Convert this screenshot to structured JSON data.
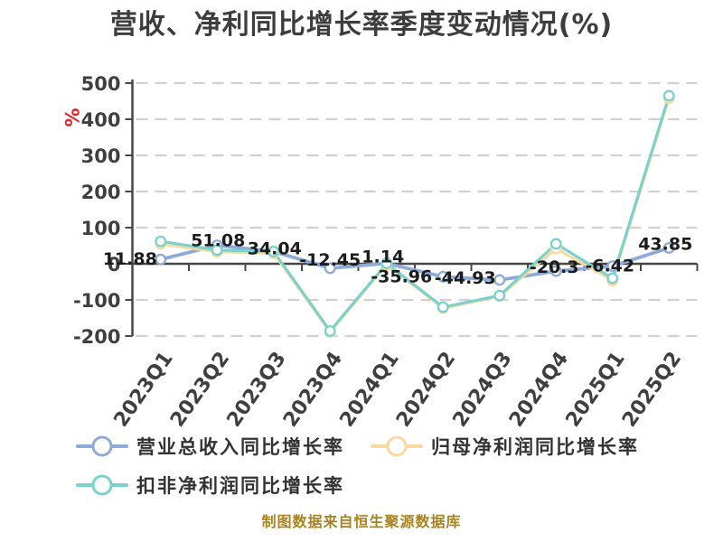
{
  "title": "营收、净利同比增长率季度变动情况(%)",
  "y_axis_unit": "%",
  "caption": "制图数据来自恒生聚源数据库",
  "colors": {
    "background": "#ffffff",
    "title_text": "#3d3d3d",
    "axis": "#474747",
    "grid": "#d0d0d0",
    "tick_text": "#3f3f3f",
    "data_label_text": "#1c1c1c",
    "unit_label": "#e02626",
    "caption_text": "#a9831f"
  },
  "chart_data": {
    "type": "line",
    "title": "营收、净利同比增长率季度变动情况(%)",
    "categories": [
      "2023Q1",
      "2023Q2",
      "2023Q3",
      "2023Q4",
      "2024Q1",
      "2024Q2",
      "2024Q3",
      "2024Q4",
      "2025Q1",
      "2025Q2"
    ],
    "xlabel": "",
    "ylabel": "%",
    "ylim": [
      -200,
      500
    ],
    "yticks": [
      500,
      400,
      300,
      200,
      100,
      0,
      -100,
      -200
    ],
    "grid": "horizontal-dashed",
    "legend_position": "bottom-left",
    "series": [
      {
        "name": "营业总收入同比增长率",
        "color": "#8fa9d8",
        "marker": "open-circle",
        "values": [
          11.88,
          51.08,
          34.04,
          -12.45,
          1.14,
          -35.96,
          -44.93,
          -20.3,
          -6.42,
          43.85
        ],
        "labels": [
          "11.88",
          "51.08",
          "34.04",
          "-12.45",
          "1.14",
          "-35.96",
          "-44.93",
          "-20.3",
          "-6.42",
          "43.85"
        ]
      },
      {
        "name": "归母净利润同比增长率",
        "color": "#f8d9a1",
        "marker": "open-circle",
        "values": [
          55,
          33,
          29,
          -189,
          -3,
          -123,
          -90,
          42,
          -46,
          458
        ]
      },
      {
        "name": "扣非净利润同比增长率",
        "color": "#79d2cb",
        "marker": "open-circle",
        "values": [
          62,
          38,
          34,
          -186,
          1,
          -120,
          -88,
          55,
          -40,
          465
        ]
      }
    ]
  }
}
